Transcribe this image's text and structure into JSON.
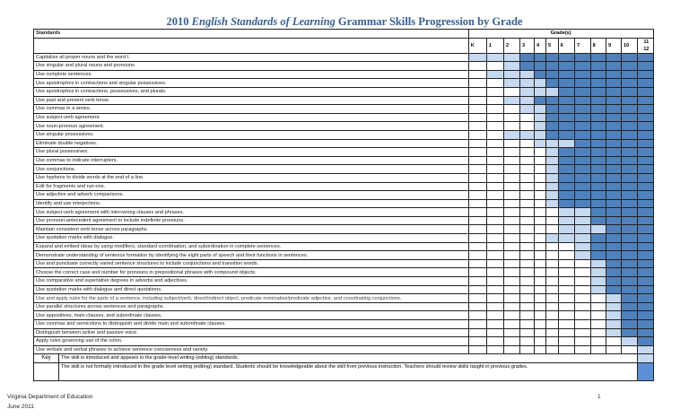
{
  "title": {
    "year": "2010",
    "italic": "English Standards of Learning",
    "rest": "Grammar Skills Progression by Grade"
  },
  "header": {
    "standards": "Standards",
    "grades": "Grade(s)"
  },
  "grade_labels": [
    "K",
    "1",
    "2",
    "3",
    "4",
    "5",
    "6",
    "7",
    "8",
    "9",
    "10",
    "11\n12"
  ],
  "grade_ids": [
    "K",
    "1",
    "2",
    "3",
    "4",
    "5",
    "6",
    "7",
    "8",
    "9",
    "10",
    "11-12"
  ],
  "colors": {
    "introduced": "#c6d9f1",
    "review": "#4f81bd",
    "title": "#365f91"
  },
  "rows": [
    {
      "text": "Capitalize all proper nouns and the word I.",
      "introduced": "K",
      "review": "3"
    },
    {
      "text": "Use singular and plural nouns and pronouns.",
      "introduced": "2",
      "review": "3"
    },
    {
      "text": "Use complete sentences.",
      "introduced": "1",
      "review": "4"
    },
    {
      "text": "Use apostrophes in contractions and singular possessives.",
      "introduced": "2",
      "review": "5"
    },
    {
      "text": "Use apostrophes in contractions, possessives, and plurals.",
      "introduced": "3",
      "review": "6"
    },
    {
      "text": "Use past and present verb tense.",
      "introduced": "2",
      "review": "4"
    },
    {
      "text": "Use commas in a series.",
      "introduced": "3",
      "review": "5"
    },
    {
      "text": "Use subject-verb agreement.",
      "introduced": "4",
      "review": "5"
    },
    {
      "text": "Use noun-pronoun agreement.",
      "introduced": "4",
      "review": "5"
    },
    {
      "text": "Use singular possessives.",
      "introduced": "2",
      "review": "5"
    },
    {
      "text": "Eliminate double negatives.",
      "introduced": "4",
      "review": "7"
    },
    {
      "text": "Use plural possessives.",
      "introduced": "5",
      "review": "6"
    },
    {
      "text": "Use commas to indicate interrupters.",
      "introduced": "5",
      "review": "6"
    },
    {
      "text": "Use conjunctions.",
      "introduced": "5",
      "review": "6"
    },
    {
      "text": "Use hyphens to divide words at the end of a line.",
      "introduced": "5",
      "review": "6"
    },
    {
      "text": "Edit for fragments and run-ons.",
      "introduced": "5",
      "review": "6"
    },
    {
      "text": "Use adjective and adverb comparisons.",
      "introduced": "5",
      "review": "6"
    },
    {
      "text": "Identify and use interjections.",
      "introduced": "5",
      "review": "6"
    },
    {
      "text": "Use subject-verb agreement with intervening clauses and phrases.",
      "introduced": "6",
      "review": "8"
    },
    {
      "text": "Use pronoun-antecedent agreement to include indefinite pronouns.",
      "introduced": "6",
      "review": "8"
    },
    {
      "text": "Maintain consistent verb tense across paragraphs.",
      "introduced": "6",
      "review": "9"
    },
    {
      "text": "Use quotation marks with dialogue.",
      "introduced": "5",
      "review": "8"
    },
    {
      "text": "Expand and embed ideas by using modifiers, standard coordination, and subordination in complete sentences.",
      "introduced": "7",
      "review": "8"
    },
    {
      "text": "Demonstrate understanding of sentence formation by identifying the eight parts of speech and their functions in sentences.",
      "introduced": "7",
      "review": "8"
    },
    {
      "text": "Use and punctuate correctly varied sentence structures to include conjunctions and transition words.",
      "introduced": "8",
      "review": "9"
    },
    {
      "text": "Choose the correct case and number for pronouns in prepositional phrases with compound objects.",
      "introduced": "8",
      "review": "9"
    },
    {
      "text": "Use comparative and superlative degrees in adverbs and adjectives.",
      "introduced": "8",
      "review": "9"
    },
    {
      "text": "Use quotation marks with dialogue and direct quotations.",
      "introduced": "8",
      "review": "9"
    },
    {
      "text": "Use and apply rules for the parts of a sentence, including subject/verb, direct/indirect object, predicate nominative/predicate adjective, and coordinating conjunctions.",
      "introduced": "9",
      "review": "10",
      "small": true
    },
    {
      "text": "Use parallel structures across sentences and paragraphs.",
      "introduced": "9",
      "review": "10"
    },
    {
      "text": "Use appositives, main clauses, and subordinate clauses.",
      "introduced": "9",
      "review": "10"
    },
    {
      "text": "Use commas and semicolons to distinguish and divide main and subordinate clauses.",
      "introduced": "9",
      "review": "10"
    },
    {
      "text": "Distinguish between active and passive voice.",
      "introduced": "9",
      "review": "10"
    },
    {
      "text": "Apply rules governing use of the colon.",
      "introduced": "10",
      "review": "11-12"
    },
    {
      "text": "Use verbals and verbal phrases to achieve sentence conciseness and variety.",
      "introduced": "11-12",
      "review": null
    }
  ],
  "key": {
    "label": "Key",
    "introduced": "The skill is introduced and appears in the grade-level writing (editing) standards.",
    "review": "The skill is not formally introduced in the grade level writing (editing) standard. Students should be knowledgeable about the skill from previous instruction. Teachers should review skills taught in previous grades."
  },
  "footer": {
    "org": "Virginia Department of Education",
    "date": "June 2011",
    "page": "1"
  }
}
